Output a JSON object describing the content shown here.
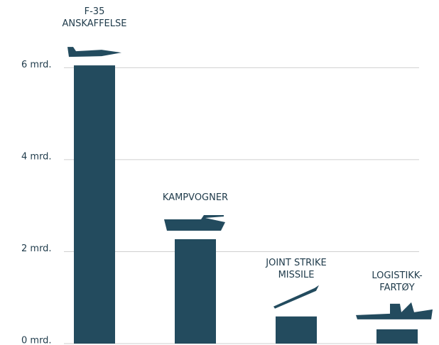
{
  "chart_data": {
    "type": "bar",
    "categories": [
      "F-35 ANSKAFFELSE",
      "KAMPVOGNER",
      "JOINT STRIKE MISSILE",
      "LOGISTIKK-FARTØY"
    ],
    "values": [
      6.05,
      2.27,
      0.59,
      0.31
    ],
    "color": "#234b5e",
    "ylim": [
      0,
      6.2
    ],
    "yticks": [
      {
        "value": 0,
        "label": "0 mrd."
      },
      {
        "value": 2,
        "label": "2 mrd."
      },
      {
        "value": 4,
        "label": "4 mrd."
      },
      {
        "value": 6,
        "label": "6 mrd."
      }
    ],
    "grid": true
  }
}
